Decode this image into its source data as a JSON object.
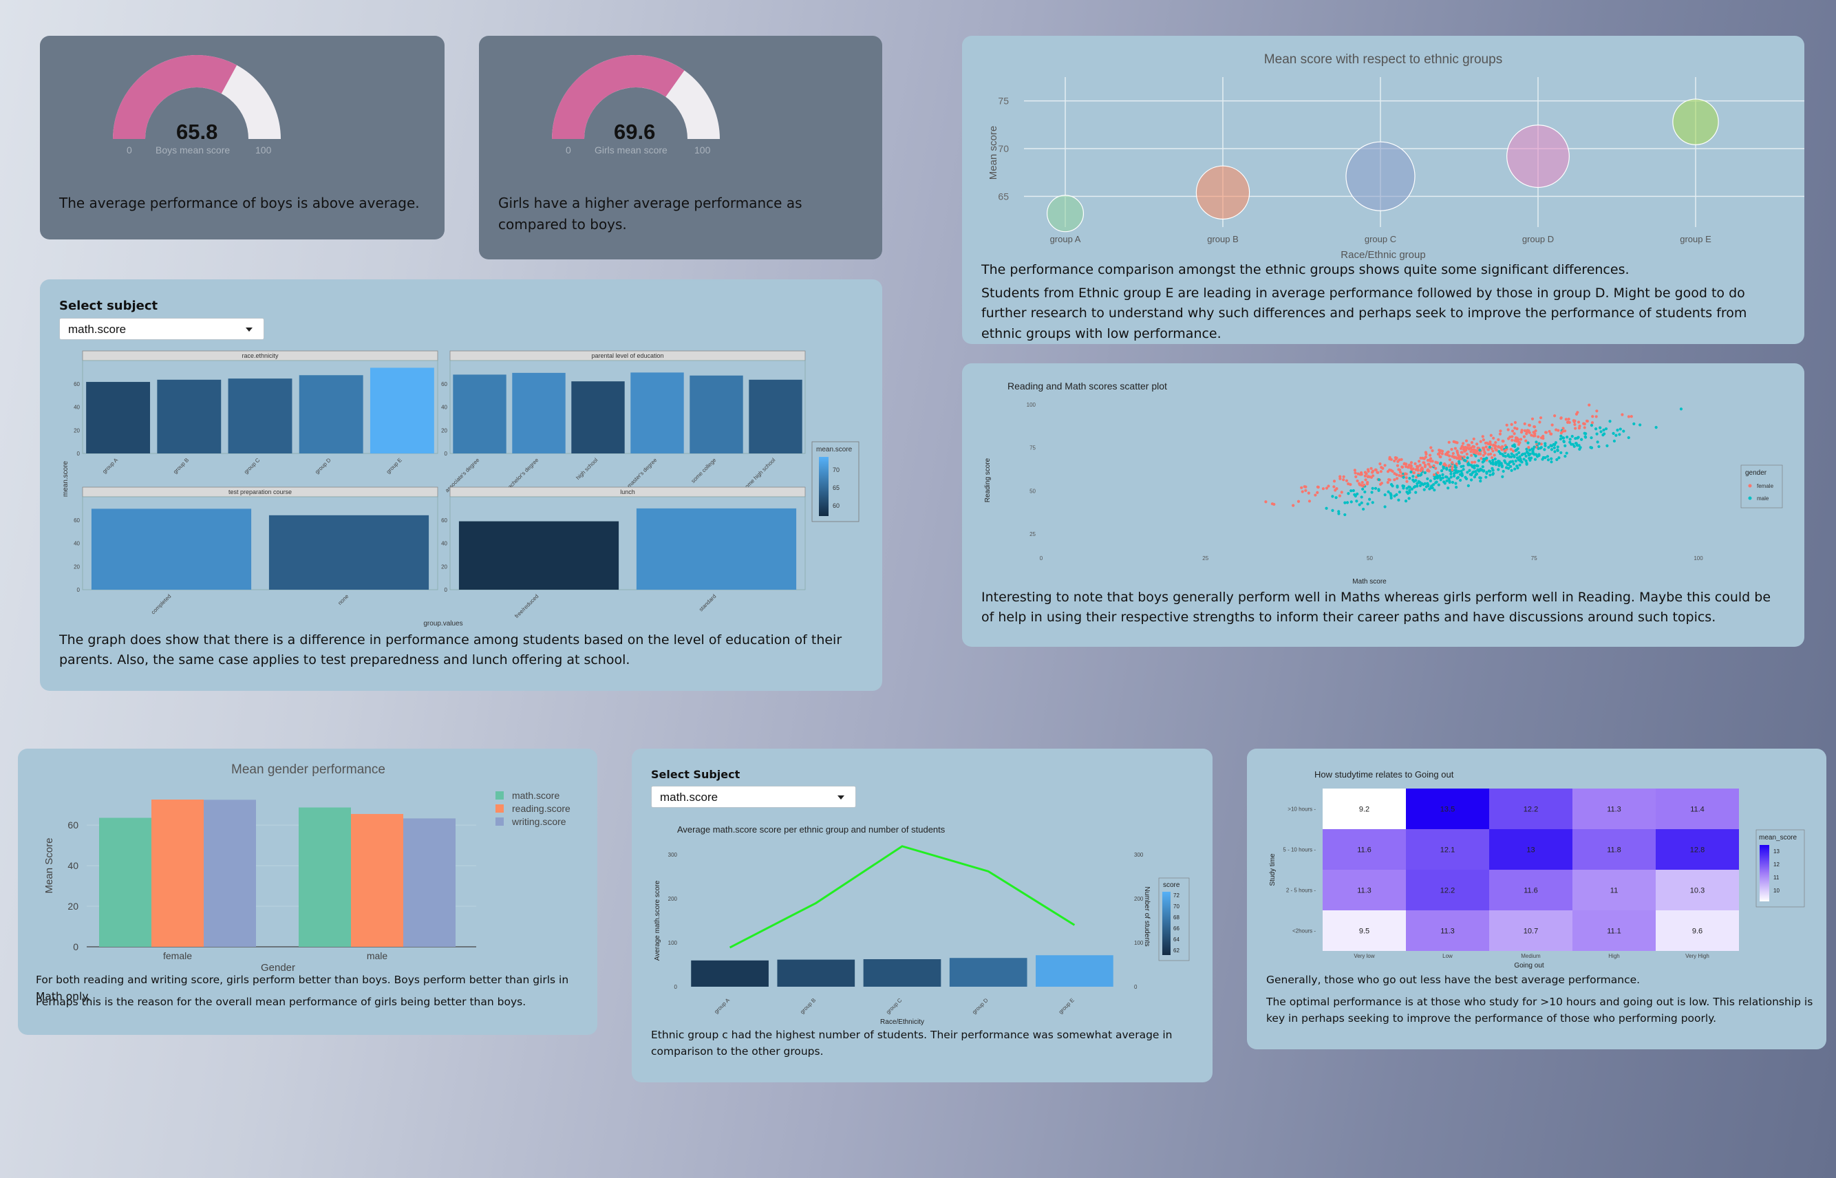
{
  "boys_card": {
    "value": "65.8",
    "min": "0",
    "max": "100",
    "label": "Boys mean score",
    "gauge_fraction": 0.658,
    "text": "The average performance of boys is above average."
  },
  "girls_card": {
    "value": "69.6",
    "min": "0",
    "max": "100",
    "label": "Girls mean score",
    "gauge_fraction": 0.696,
    "text": "Girls have a higher average performance as compared to boys."
  },
  "colors": {
    "gauge_fill": "#d1689c",
    "gauge_bg": "#efedf1",
    "bubble_colors": [
      "#8fd19e",
      "#fc8d62",
      "#8da0cb",
      "#e78ac3",
      "#a6d854"
    ],
    "female": "#f8766d",
    "male": "#00bfc4",
    "line": "#22ee22"
  },
  "ethnic_bubbles": {
    "chart_data": {
      "type": "scatter",
      "title": "Mean score with respect to ethnic groups",
      "xlabel": "Race/Ethnic group",
      "ylabel": "Mean score",
      "categories": [
        "group A",
        "group B",
        "group C",
        "group D",
        "group E"
      ],
      "values": [
        63.2,
        65.4,
        67.1,
        69.2,
        72.8
      ],
      "bubble_size": [
        89,
        190,
        319,
        262,
        140
      ],
      "y_ticks": [
        "65",
        "70",
        "75"
      ],
      "ylim": [
        62.5,
        77.5
      ]
    },
    "text1": "The performance comparison amongst the ethnic groups shows quite some significant differences.",
    "text2": "Students from Ethnic group E are leading in average performance followed by those in group D. Might be good to do further research to understand why such differences and perhaps seek to improve the performance of students from ethnic groups with low performance."
  },
  "subject_facets": {
    "select_label": "Select subject",
    "select_value": "math.score",
    "chart_data": {
      "type": "bar",
      "ylabel": "mean.score",
      "xlabel": "group.values",
      "legend_title": "mean.score",
      "legend_ticks": [
        "70",
        "65",
        "60"
      ],
      "y_ticks": [
        "0",
        "20",
        "40",
        "60"
      ],
      "ylim": [
        0,
        80
      ],
      "facets": [
        {
          "title": "race.ethnicity",
          "categories": [
            "group A",
            "group B",
            "group C",
            "group D",
            "group E"
          ],
          "values": [
            61.6,
            63.5,
            64.5,
            67.4,
            73.8
          ]
        },
        {
          "title": "parental level of education",
          "categories": [
            "associate's degree",
            "bachelor's degree",
            "high school",
            "master's degree",
            "some college",
            "some high school"
          ],
          "values": [
            67.9,
            69.4,
            62.1,
            69.7,
            67.1,
            63.5
          ]
        },
        {
          "title": "test preparation course",
          "categories": [
            "completed",
            "none"
          ],
          "values": [
            69.7,
            64.1
          ]
        },
        {
          "title": "lunch",
          "categories": [
            "free/reduced",
            "standard"
          ],
          "values": [
            58.9,
            70.0
          ]
        }
      ]
    },
    "text": "The graph does show that there is a difference in performance among students based on the level of education of their parents. Also, the same case applies to test preparedness and lunch offering at school."
  },
  "scatter": {
    "chart_data": {
      "type": "scatter",
      "title": "Reading and Math scores scatter plot",
      "xlabel": "Math score",
      "ylabel": "Reading score",
      "x_ticks": [
        "0",
        "25",
        "50",
        "75",
        "100"
      ],
      "y_ticks": [
        "25",
        "50",
        "75",
        "100"
      ],
      "xlim": [
        0,
        100
      ],
      "ylim": [
        17,
        100
      ],
      "legend_title": "gender",
      "series_names": [
        "female",
        "male"
      ],
      "point_count_each": 420
    },
    "text": "Interesting to note that boys generally perform well in Maths whereas girls perform well in Reading. Maybe this could be of help in using their respective strengths to inform their career paths and have discussions around such topics."
  },
  "gender_bar": {
    "chart_data": {
      "type": "bar",
      "title": "Mean gender performance",
      "xlabel": "Gender",
      "ylabel": "Mean Score",
      "categories": [
        "female",
        "male"
      ],
      "y_ticks": [
        "0",
        "20",
        "40",
        "60"
      ],
      "ylim": [
        0,
        76
      ],
      "series": [
        {
          "name": "math.score",
          "values": [
            63.6,
            68.7
          ]
        },
        {
          "name": "reading.score",
          "values": [
            72.6,
            65.5
          ]
        },
        {
          "name": "writing.score",
          "values": [
            72.5,
            63.3
          ]
        }
      ],
      "colors": [
        "#66c2a5",
        "#fc8d62",
        "#8da0cb"
      ]
    },
    "text1": "For both reading and writing score, girls perform better than boys. Boys perform better than girls in Math only.",
    "text2": "Perhaps this is the reason for the overall mean performance of girls being better than boys."
  },
  "ethnic_line": {
    "select_label": "Select Subject",
    "select_value": "math.score",
    "chart_data": {
      "type": "bar",
      "title": "Average  math.score  score per ethnic group and number of students",
      "xlabel": "Race/Ethnicity",
      "ylabel": "Average math.score score",
      "y2label": "Number of students",
      "categories": [
        "group A",
        "group B",
        "group C",
        "group D",
        "group E"
      ],
      "values": [
        61.6,
        63.5,
        64.5,
        67.4,
        73.8
      ],
      "students": [
        89,
        190,
        319,
        262,
        140
      ],
      "y_ticks": [
        "0",
        "100",
        "200",
        "300"
      ],
      "y2_ticks": [
        "0",
        "100",
        "200",
        "300"
      ],
      "ylim": [
        0,
        300
      ],
      "legend_title": "score",
      "legend_ticks": [
        "72",
        "70",
        "68",
        "66",
        "64",
        "62"
      ]
    },
    "text": "Ethnic group c had the highest number of students. Their performance was somewhat average in comparison to the other groups."
  },
  "heatmap": {
    "chart_data": {
      "type": "heatmap",
      "title": "How studytime relates to Going out",
      "xlabel": "Going out",
      "ylabel": "Study time",
      "x": [
        "Very low",
        "Low",
        "Medium",
        "High",
        "Very High"
      ],
      "y": [
        ">10 hours",
        "5 - 10 hours",
        "2 - 5 hours",
        "<2hours"
      ],
      "values": [
        [
          "9.2",
          "13.5",
          "12.2",
          "11.3",
          "11.4"
        ],
        [
          "11.6",
          "12.1",
          "13",
          "11.8",
          "12.8"
        ],
        [
          "11.3",
          "12.2",
          "11.6",
          "11",
          "10.3"
        ],
        [
          "9.5",
          "11.3",
          "10.7",
          "11.1",
          "9.6"
        ]
      ],
      "legend_title": "mean_score",
      "legend_ticks": [
        "13",
        "12",
        "11",
        "10"
      ],
      "range": [
        9.2,
        13.5
      ]
    },
    "text1": "Generally, those who go out less have the best average performance.",
    "text2": "The optimal performance is at those who study for >10 hours and going out is low. This relationship is key in perhaps seeking to improve the performance of those who performing poorly."
  }
}
